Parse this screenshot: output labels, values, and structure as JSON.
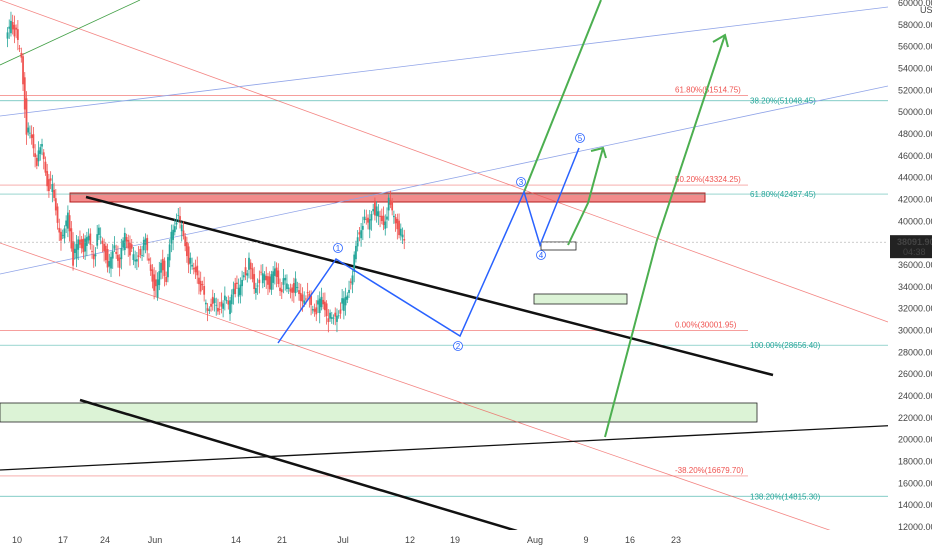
{
  "chart_data": {
    "type": "candlestick",
    "currency": "USD",
    "price_axis": {
      "ticks": [
        "60000.00",
        "58000.00",
        "56000.00",
        "54000.00",
        "52000.00",
        "50000.00",
        "48000.00",
        "46000.00",
        "44000.00",
        "42000.00",
        "40000.00",
        "38000.00",
        "36000.00",
        "34000.00",
        "32000.00",
        "30000.00",
        "28000.00",
        "26000.00",
        "24000.00",
        "22000.00",
        "20000.00",
        "18000.00",
        "16000.00",
        "14000.00",
        "12000.00"
      ],
      "range": [
        11500,
        60500
      ],
      "scale": "linear"
    },
    "time_axis": {
      "ticks": [
        "10",
        "17",
        "24",
        "Jun",
        "14",
        "21",
        "Jul",
        "12",
        "19",
        "Aug",
        "9",
        "16",
        "23"
      ],
      "day_range": [
        8,
        116
      ]
    },
    "last_price": {
      "value": 38091.9,
      "label": "38091.90",
      "countdown": "04:38"
    },
    "fib_levels": [
      {
        "label": "61.80%(51514.75)",
        "price": 51514.75,
        "color": "#ef5350"
      },
      {
        "label": "38.20%(51048.45)",
        "price": 51048.45,
        "color": "#26a69a"
      },
      {
        "label": "50.20%(43324.25)",
        "price": 43324.25,
        "color": "#ef5350"
      },
      {
        "label": "61.80%(42497.45)",
        "price": 42497.45,
        "color": "#26a69a"
      },
      {
        "label": "0.00%(30001.95)",
        "price": 30001.95,
        "color": "#ef5350"
      },
      {
        "label": "100.00%(28656.40)",
        "price": 28656.4,
        "color": "#26a69a"
      },
      {
        "label": "-38.20%(16679.70)",
        "price": 16679.7,
        "color": "#ef5350"
      },
      {
        "label": "138.20%(14815.30)",
        "price": 14815.3,
        "color": "#26a69a"
      }
    ],
    "wave_labels": [
      "1",
      "2",
      "3",
      "4",
      "5"
    ],
    "price_path": [
      [
        8,
        56500
      ],
      [
        9,
        58500
      ],
      [
        10,
        57000
      ],
      [
        11,
        55000
      ],
      [
        12,
        48500
      ],
      [
        13,
        47500
      ],
      [
        14,
        45500
      ],
      [
        15,
        46800
      ],
      [
        16,
        43500
      ],
      [
        17,
        43000
      ],
      [
        18,
        40000
      ],
      [
        19,
        38200
      ],
      [
        20,
        40800
      ],
      [
        21,
        36500
      ],
      [
        22,
        38200
      ],
      [
        23,
        37600
      ],
      [
        24,
        38400
      ],
      [
        25,
        36800
      ],
      [
        26,
        39000
      ],
      [
        27,
        37400
      ],
      [
        28,
        35800
      ],
      [
        29,
        37800
      ],
      [
        30,
        36300
      ],
      [
        31,
        38800
      ],
      [
        32,
        37300
      ],
      [
        33,
        36200
      ],
      [
        34,
        37200
      ],
      [
        35,
        38000
      ],
      [
        36,
        35600
      ],
      [
        37,
        33500
      ],
      [
        38,
        36200
      ],
      [
        39,
        35000
      ],
      [
        40,
        38900
      ],
      [
        41,
        40300
      ],
      [
        42,
        39400
      ],
      [
        43,
        37100
      ],
      [
        44,
        35600
      ],
      [
        45,
        35200
      ],
      [
        46,
        33600
      ],
      [
        47,
        31800
      ],
      [
        48,
        33000
      ],
      [
        49,
        31600
      ],
      [
        50,
        32900
      ],
      [
        51,
        32100
      ],
      [
        52,
        34100
      ],
      [
        53,
        33500
      ],
      [
        54,
        35200
      ],
      [
        55,
        36100
      ],
      [
        56,
        33800
      ],
      [
        57,
        34900
      ],
      [
        58,
        35000
      ],
      [
        59,
        34200
      ],
      [
        60,
        35400
      ],
      [
        61,
        33900
      ],
      [
        62,
        34400
      ],
      [
        63,
        33700
      ],
      [
        64,
        34200
      ],
      [
        65,
        32700
      ],
      [
        66,
        33400
      ],
      [
        67,
        32200
      ],
      [
        68,
        31900
      ],
      [
        69,
        32800
      ],
      [
        70,
        31600
      ],
      [
        71,
        30800
      ],
      [
        72,
        31500
      ],
      [
        73,
        32400
      ],
      [
        74,
        33200
      ],
      [
        75,
        35600
      ],
      [
        76,
        38400
      ],
      [
        77,
        40000
      ],
      [
        78,
        39600
      ],
      [
        79,
        41400
      ],
      [
        80,
        40500
      ],
      [
        81,
        39800
      ],
      [
        82,
        41600
      ],
      [
        83,
        40500
      ],
      [
        84,
        39300
      ],
      [
        85,
        38100
      ]
    ]
  }
}
